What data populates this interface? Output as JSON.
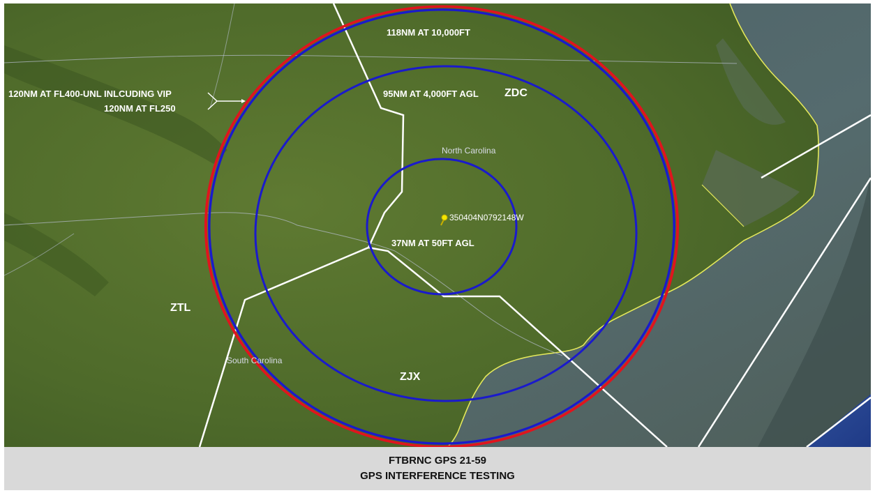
{
  "map": {
    "center_pin_label": "350404N0792148W",
    "ring_labels": {
      "outer_blue": "118NM AT 10,000FT",
      "middle": "95NM AT 4,000FT AGL",
      "inner": "37NM AT 50FT AGL"
    },
    "red_ring_labels": [
      "120NM AT FL400-UNL INLCUDING VIP",
      "120NM AT FL250"
    ],
    "centers": {
      "zdc": "ZDC",
      "ztl": "ZTL",
      "zjx": "ZJX"
    },
    "states": {
      "north_carolina": "North Carolina",
      "south_carolina": "South Carolina"
    },
    "colors": {
      "red_ring": "#e0141e",
      "blue_ring": "#1a1acc",
      "boundary": "#ffffff",
      "pin": "#f2e600",
      "coast": "#e4e85a"
    }
  },
  "footer": {
    "line1": "FTBRNC GPS 21-59",
    "line2": "GPS INTERFERENCE TESTING"
  }
}
